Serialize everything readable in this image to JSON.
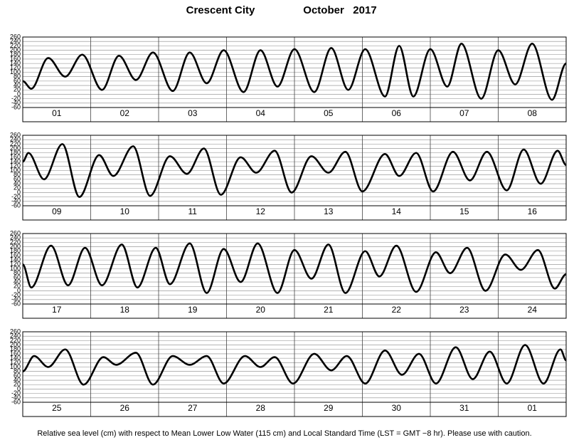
{
  "header": {
    "title": "Crescent City",
    "period": "October   2017"
  },
  "footer": "Relative sea level (cm) with respect to Mean Lower Low Water (115 cm) and Local Standard Time (LST = GMT −8 hr). Please use with caution.",
  "chart_data": [
    {
      "type": "line",
      "color": "#000000",
      "categories": [
        "01",
        "02",
        "03",
        "04",
        "05",
        "06",
        "07",
        "08"
      ],
      "x": [
        0,
        3,
        9,
        15,
        21,
        28,
        34,
        40,
        46,
        53,
        59,
        65,
        71,
        78,
        84,
        90,
        96,
        103,
        109,
        115,
        121,
        128,
        133,
        138,
        144,
        150,
        155,
        162,
        168,
        174,
        180,
        187,
        192
      ],
      "values": [
        60,
        25,
        165,
        80,
        180,
        20,
        175,
        65,
        190,
        15,
        190,
        50,
        200,
        10,
        200,
        35,
        205,
        10,
        210,
        20,
        205,
        -10,
        220,
        -10,
        205,
        35,
        230,
        -20,
        200,
        45,
        230,
        -25,
        140
      ],
      "xlim": [
        0,
        192
      ],
      "ylim": [
        -60,
        260
      ],
      "yticks": [
        -60,
        -40,
        -20,
        0,
        20,
        40,
        60,
        80,
        100,
        120,
        140,
        160,
        180,
        200,
        220,
        240,
        260
      ]
    },
    {
      "type": "line",
      "color": "#000000",
      "categories": [
        "09",
        "10",
        "11",
        "12",
        "13",
        "14",
        "15",
        "16"
      ],
      "x": [
        0,
        2,
        7.5,
        14,
        20,
        27,
        32,
        39,
        45,
        52,
        58,
        64,
        70,
        77,
        82.5,
        89,
        95,
        102,
        108,
        114,
        120,
        128,
        133,
        139,
        145,
        152,
        158,
        164,
        171,
        177,
        183,
        189,
        192
      ],
      "values": [
        140,
        180,
        60,
        220,
        -20,
        170,
        75,
        210,
        -15,
        165,
        85,
        200,
        -10,
        160,
        90,
        190,
        0,
        165,
        90,
        185,
        5,
        175,
        75,
        180,
        5,
        185,
        55,
        185,
        10,
        195,
        40,
        190,
        125
      ],
      "xlim": [
        0,
        192
      ],
      "ylim": [
        -60,
        260
      ],
      "yticks": [
        -60,
        -40,
        -20,
        0,
        20,
        40,
        60,
        80,
        100,
        120,
        140,
        160,
        180,
        200,
        220,
        240,
        260
      ]
    },
    {
      "type": "line",
      "color": "#000000",
      "categories": [
        "17",
        "18",
        "19",
        "20",
        "21",
        "22",
        "23",
        "24"
      ],
      "x": [
        0,
        3,
        10,
        16,
        22,
        28,
        35,
        40.5,
        47,
        52,
        59,
        65,
        71,
        77,
        83,
        90,
        96,
        102,
        108,
        114,
        121,
        126,
        132,
        139,
        146,
        151,
        157,
        163.5,
        170.5,
        176,
        182,
        188,
        192
      ],
      "values": [
        120,
        15,
        205,
        25,
        195,
        25,
        210,
        15,
        195,
        30,
        215,
        -10,
        190,
        40,
        215,
        -10,
        185,
        55,
        210,
        -10,
        180,
        65,
        205,
        -5,
        175,
        80,
        195,
        0,
        165,
        95,
        185,
        10,
        75
      ],
      "xlim": [
        0,
        192
      ],
      "ylim": [
        -60,
        260
      ],
      "yticks": [
        -60,
        -40,
        -20,
        0,
        20,
        40,
        60,
        80,
        100,
        120,
        140,
        160,
        180,
        200,
        220,
        240,
        260
      ]
    },
    {
      "type": "line",
      "color": "#000000",
      "categories": [
        "25",
        "26",
        "27",
        "28",
        "29",
        "30",
        "31",
        "01"
      ],
      "x": [
        0,
        4,
        9,
        15,
        21.5,
        28.5,
        33,
        40,
        46,
        53,
        59,
        65,
        71,
        78.5,
        84,
        89,
        95.5,
        103,
        109,
        114.5,
        121,
        128,
        134,
        140,
        146,
        153,
        159,
        165,
        171,
        177.5,
        184,
        190,
        192
      ],
      "values": [
        80,
        150,
        100,
        180,
        20,
        145,
        110,
        165,
        20,
        150,
        110,
        150,
        25,
        150,
        100,
        145,
        25,
        160,
        85,
        150,
        25,
        175,
        65,
        160,
        25,
        190,
        45,
        170,
        25,
        200,
        25,
        180,
        130
      ],
      "xlim": [
        0,
        192
      ],
      "ylim": [
        -60,
        260
      ],
      "yticks": [
        -60,
        -40,
        -20,
        0,
        20,
        40,
        60,
        80,
        100,
        120,
        140,
        160,
        180,
        200,
        220,
        240,
        260
      ]
    }
  ]
}
